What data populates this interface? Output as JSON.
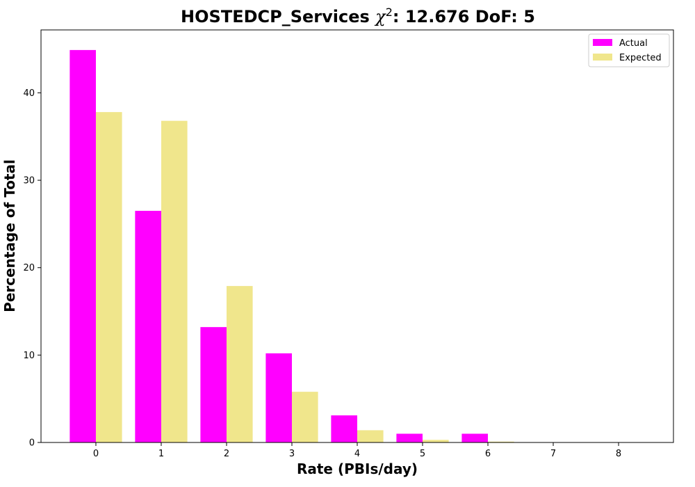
{
  "chart_data": {
    "type": "bar",
    "title": "HOSTEDCP_Services",
    "title_chi": "χ",
    "title_chi_exp": "2",
    "title_rest": ": 12.676 DoF: 5",
    "xlabel": "Rate (PBIs/day)",
    "ylabel": "Percentage of Total",
    "categories": [
      "0",
      "1",
      "2",
      "3",
      "4",
      "5",
      "6",
      "7",
      "8"
    ],
    "series": [
      {
        "name": "Actual",
        "color": "#ff00ff",
        "values": [
          44.9,
          26.5,
          13.2,
          10.2,
          3.1,
          1.0,
          1.0,
          0.0,
          0.0
        ]
      },
      {
        "name": "Expected",
        "color": "#f0e68c",
        "values": [
          37.8,
          36.8,
          17.9,
          5.8,
          1.4,
          0.3,
          0.1,
          0.0,
          0.0
        ]
      }
    ],
    "xlim": [
      -0.84,
      8.84
    ],
    "ylim": [
      0,
      47.2
    ],
    "yticks": [
      0,
      10,
      20,
      30,
      40
    ],
    "legend_position": "top-right",
    "grid": false
  }
}
